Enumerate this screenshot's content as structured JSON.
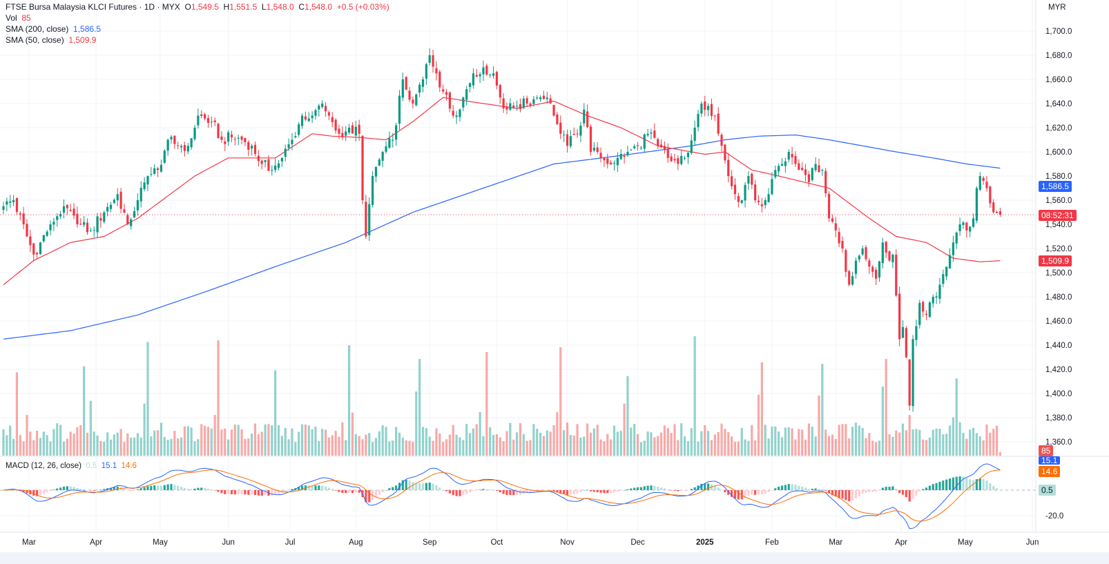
{
  "header": {
    "symbol": "FTSE Bursa Malaysia KLCI Futures",
    "sep1": "·",
    "interval": "1D",
    "sep2": "·",
    "exchange": "MYX",
    "o_label": "O",
    "o": "1,549.5",
    "h_label": "H",
    "h": "1,551.5",
    "l_label": "L",
    "l": "1,548.0",
    "c_label": "C",
    "c": "1,548.0",
    "change": "+0.5 (+0.03%)",
    "vol_label": "Vol",
    "vol": "85",
    "sma200_label": "SMA (200, close)",
    "sma200": "1,586.5",
    "sma50_label": "SMA (50, close)",
    "sma50": "1,509.9"
  },
  "macd_legend": {
    "label": "MACD (12, 26, close)",
    "hist": "0.5",
    "macd": "15.1",
    "signal": "14.6"
  },
  "axis": {
    "currency": "MYR",
    "price_ticks": [
      "1,700.0",
      "1,680.0",
      "1,660.0",
      "1,640.0",
      "1,620.0",
      "1,600.0",
      "1,580.0",
      "1,560.0",
      "1,540.0",
      "1,520.0",
      "1,500.0",
      "1,480.0",
      "1,460.0",
      "1,440.0",
      "1,420.0",
      "1,400.0",
      "1,380.0",
      "1,360.0"
    ],
    "macd_ticks": [
      "-20.0"
    ],
    "time_ticks": [
      "Mar",
      "Apr",
      "May",
      "Jun",
      "Jul",
      "Aug",
      "Sep",
      "Oct",
      "Nov",
      "Dec",
      "2025",
      "Feb",
      "Mar",
      "Apr",
      "May",
      "Jun"
    ]
  },
  "tags": {
    "sma200": "1,586.5",
    "countdown": "08:52:31",
    "sma50": "1,509.9",
    "volume": "85",
    "macd": "15.1",
    "signal": "14.6",
    "hist": "0.5"
  },
  "colors": {
    "up": "#089981",
    "down": "#f23645",
    "sma200": "#2962ff",
    "sma50": "#f23645",
    "macd": "#2962ff",
    "signal": "#ff6d00"
  },
  "chart_data": {
    "type": "candlestick",
    "title": "FTSE Bursa Malaysia KLCI Futures, 1D, MYX",
    "bars": 298,
    "last_price": 1548.0,
    "price_range": [
      1360,
      1700
    ],
    "close_keypoints": [
      [
        0,
        1555
      ],
      [
        3,
        1560
      ],
      [
        7,
        1530
      ],
      [
        9,
        1515
      ],
      [
        11,
        1525
      ],
      [
        14,
        1540
      ],
      [
        18,
        1555
      ],
      [
        22,
        1540
      ],
      [
        26,
        1535
      ],
      [
        30,
        1550
      ],
      [
        34,
        1565
      ],
      [
        37,
        1540
      ],
      [
        40,
        1560
      ],
      [
        43,
        1580
      ],
      [
        46,
        1585
      ],
      [
        49,
        1610
      ],
      [
        52,
        1605
      ],
      [
        55,
        1605
      ],
      [
        58,
        1630
      ],
      [
        62,
        1625
      ],
      [
        65,
        1610
      ],
      [
        68,
        1612
      ],
      [
        71,
        1610
      ],
      [
        74,
        1605
      ],
      [
        77,
        1590
      ],
      [
        80,
        1585
      ],
      [
        83,
        1595
      ],
      [
        86,
        1610
      ],
      [
        89,
        1630
      ],
      [
        92,
        1630
      ],
      [
        95,
        1640
      ],
      [
        97,
        1630
      ],
      [
        100,
        1615
      ],
      [
        103,
        1620
      ],
      [
        106,
        1615
      ],
      [
        107,
        1560
      ],
      [
        108,
        1530
      ],
      [
        110,
        1580
      ],
      [
        113,
        1600
      ],
      [
        116,
        1610
      ],
      [
        119,
        1660
      ],
      [
        122,
        1640
      ],
      [
        125,
        1660
      ],
      [
        127,
        1680
      ],
      [
        129,
        1665
      ],
      [
        131,
        1650
      ],
      [
        134,
        1630
      ],
      [
        137,
        1645
      ],
      [
        140,
        1665
      ],
      [
        143,
        1670
      ],
      [
        146,
        1665
      ],
      [
        148,
        1645
      ],
      [
        150,
        1635
      ],
      [
        153,
        1638
      ],
      [
        156,
        1640
      ],
      [
        159,
        1645
      ],
      [
        162,
        1645
      ],
      [
        164,
        1630
      ],
      [
        166,
        1615
      ],
      [
        168,
        1605
      ],
      [
        171,
        1615
      ],
      [
        173,
        1635
      ],
      [
        175,
        1600
      ],
      [
        177,
        1600
      ],
      [
        180,
        1590
      ],
      [
        183,
        1595
      ],
      [
        186,
        1600
      ],
      [
        189,
        1605
      ],
      [
        192,
        1615
      ],
      [
        195,
        1605
      ],
      [
        198,
        1595
      ],
      [
        201,
        1590
      ],
      [
        203,
        1595
      ],
      [
        206,
        1620
      ],
      [
        208,
        1640
      ],
      [
        210,
        1638
      ],
      [
        212,
        1630
      ],
      [
        214,
        1605
      ],
      [
        216,
        1580
      ],
      [
        218,
        1565
      ],
      [
        220,
        1560
      ],
      [
        222,
        1580
      ],
      [
        224,
        1560
      ],
      [
        226,
        1555
      ],
      [
        228,
        1565
      ],
      [
        230,
        1585
      ],
      [
        232,
        1590
      ],
      [
        234,
        1600
      ],
      [
        236,
        1590
      ],
      [
        238,
        1585
      ],
      [
        240,
        1575
      ],
      [
        242,
        1590
      ],
      [
        244,
        1585
      ],
      [
        246,
        1545
      ],
      [
        248,
        1535
      ],
      [
        250,
        1520
      ],
      [
        252,
        1490
      ],
      [
        254,
        1510
      ],
      [
        256,
        1520
      ],
      [
        258,
        1505
      ],
      [
        260,
        1495
      ],
      [
        262,
        1525
      ],
      [
        264,
        1510
      ],
      [
        265,
        1515
      ],
      [
        267,
        1445
      ],
      [
        268,
        1455
      ],
      [
        269,
        1430
      ],
      [
        270,
        1390
      ],
      [
        271,
        1445
      ],
      [
        273,
        1475
      ],
      [
        275,
        1465
      ],
      [
        277,
        1480
      ],
      [
        279,
        1490
      ],
      [
        281,
        1505
      ],
      [
        283,
        1525
      ],
      [
        285,
        1540
      ],
      [
        287,
        1535
      ],
      [
        289,
        1545
      ],
      [
        290,
        1570
      ],
      [
        291,
        1580
      ],
      [
        293,
        1570
      ],
      [
        295,
        1550
      ],
      [
        297,
        1548
      ]
    ],
    "sma50_keypoints": [
      [
        0,
        1490
      ],
      [
        9,
        1510
      ],
      [
        20,
        1525
      ],
      [
        30,
        1530
      ],
      [
        40,
        1545
      ],
      [
        57,
        1580
      ],
      [
        67,
        1595
      ],
      [
        81,
        1595
      ],
      [
        92,
        1615
      ],
      [
        98,
        1613
      ],
      [
        106,
        1612
      ],
      [
        114,
        1610
      ],
      [
        122,
        1625
      ],
      [
        131,
        1645
      ],
      [
        143,
        1640
      ],
      [
        153,
        1636
      ],
      [
        164,
        1642
      ],
      [
        174,
        1630
      ],
      [
        184,
        1620
      ],
      [
        195,
        1605
      ],
      [
        205,
        1600
      ],
      [
        209,
        1598
      ],
      [
        215,
        1600
      ],
      [
        223,
        1585
      ],
      [
        231,
        1580
      ],
      [
        246,
        1570
      ],
      [
        258,
        1545
      ],
      [
        266,
        1530
      ],
      [
        275,
        1525
      ],
      [
        283,
        1512
      ],
      [
        291,
        1509
      ],
      [
        297,
        1509.9
      ]
    ],
    "sma200_keypoints": [
      [
        0,
        1445
      ],
      [
        20,
        1452
      ],
      [
        40,
        1465
      ],
      [
        61,
        1485
      ],
      [
        81,
        1505
      ],
      [
        102,
        1525
      ],
      [
        122,
        1550
      ],
      [
        143,
        1570
      ],
      [
        164,
        1590
      ],
      [
        184,
        1597
      ],
      [
        205,
        1605
      ],
      [
        215,
        1610
      ],
      [
        225,
        1613
      ],
      [
        236,
        1614
      ],
      [
        246,
        1610
      ],
      [
        256,
        1605
      ],
      [
        266,
        1600
      ],
      [
        277,
        1595
      ],
      [
        287,
        1590
      ],
      [
        297,
        1586.5
      ]
    ],
    "volume_base": 550,
    "volume_spikes": [
      [
        4,
        2050
      ],
      [
        7,
        1000
      ],
      [
        24,
        2200
      ],
      [
        26,
        1350
      ],
      [
        42,
        1280
      ],
      [
        43,
        2800
      ],
      [
        63,
        1000
      ],
      [
        64,
        2840
      ],
      [
        81,
        2100
      ],
      [
        103,
        2720
      ],
      [
        104,
        1060
      ],
      [
        123,
        1580
      ],
      [
        124,
        2380
      ],
      [
        142,
        1070
      ],
      [
        144,
        2550
      ],
      [
        165,
        1070
      ],
      [
        166,
        2670
      ],
      [
        185,
        1280
      ],
      [
        186,
        1960
      ],
      [
        206,
        2940
      ],
      [
        225,
        1500
      ],
      [
        226,
        2300
      ],
      [
        243,
        1480
      ],
      [
        244,
        2260
      ],
      [
        262,
        1700
      ],
      [
        263,
        2380
      ],
      [
        270,
        1000
      ],
      [
        283,
        940
      ],
      [
        284,
        1900
      ]
    ],
    "volume_last": 85,
    "macd": {
      "fast": 12,
      "slow": 26,
      "signal": 9,
      "last_macd": 15.1,
      "last_signal": 14.6,
      "last_hist": 0.5,
      "range": [
        -30,
        30
      ]
    }
  }
}
